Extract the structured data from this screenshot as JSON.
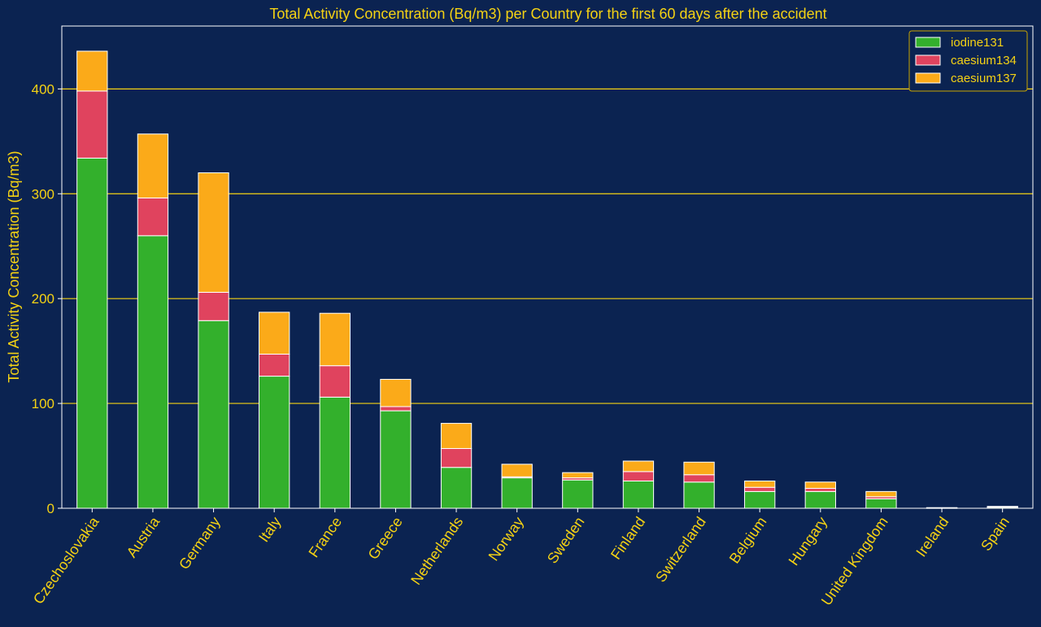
{
  "chart_data": {
    "type": "bar",
    "stacked": true,
    "title": "Total Activity Concentration (Bq/m3) per Country for the first 60 days after the accident",
    "xlabel": "",
    "ylabel": "Total Activity Concentration (Bq/m3)",
    "ylim": [
      0,
      460
    ],
    "yticks": [
      0,
      100,
      200,
      300,
      400
    ],
    "grid": "horizontal",
    "legend_position": "top-right",
    "categories": [
      "Czechoslovakia",
      "Austria",
      "Germany",
      "Italy",
      "France",
      "Greece",
      "Netherlands",
      "Norway",
      "Sweden",
      "Finland",
      "Switzerland",
      "Belgium",
      "Hungary",
      "United Kingdom",
      "Ireland",
      "Spain"
    ],
    "series": [
      {
        "name": "iodine131",
        "color": "#33b02c",
        "values": [
          334,
          260,
          179,
          126,
          106,
          93,
          39,
          29,
          27,
          26,
          25,
          16,
          16,
          9,
          0.3,
          1
        ]
      },
      {
        "name": "caesium134",
        "color": "#e0435e",
        "values": [
          64,
          36,
          27,
          21,
          30,
          4,
          18,
          1,
          2,
          9,
          7,
          4,
          3,
          2,
          0.1,
          0.3
        ]
      },
      {
        "name": "caesium137",
        "color": "#fbaa19",
        "values": [
          38,
          61,
          114,
          40,
          50,
          26,
          24,
          12,
          5,
          10,
          12,
          6,
          6,
          5,
          0.2,
          0.5
        ]
      }
    ]
  },
  "colors": {
    "background": "#0b2351",
    "text": "#f5d214",
    "grid": "#f5d214",
    "axis": "#ffffff",
    "bar_edge": "#ffffff"
  }
}
